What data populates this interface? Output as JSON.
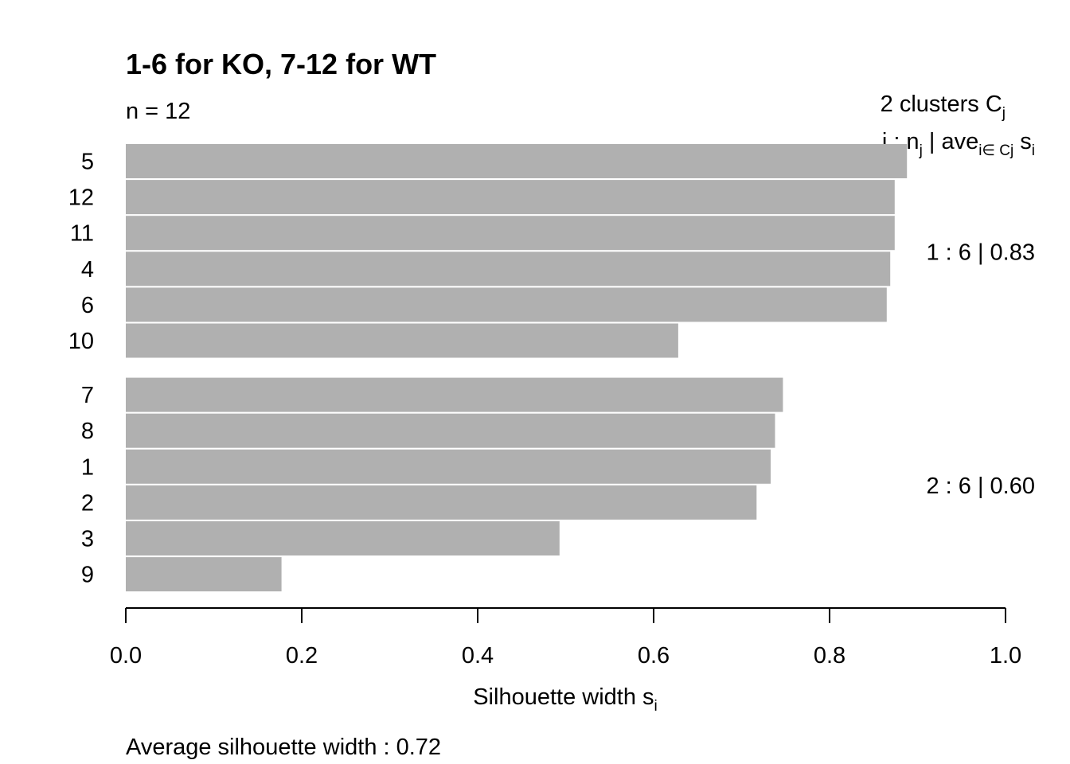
{
  "chart_data": {
    "type": "bar",
    "orientation": "horizontal",
    "title": "1-6 for KO, 7-12 for WT",
    "n_label": "n = 12",
    "legend_header": {
      "line1_main": "2 clusters C",
      "line1_sub": "j",
      "line2_a": "j :  n",
      "line2_a_sub": "j",
      "line2_b": " | ave",
      "line2_b_sub": "i∈ Cj",
      "line2_c": " s",
      "line2_c_sub": "i"
    },
    "xlabel_main": "Silhouette width s",
    "xlabel_sub": "i",
    "average_text": "Average silhouette width :  0.72",
    "xlim": [
      0.0,
      1.0
    ],
    "x_ticks": [
      "0.0",
      "0.2",
      "0.4",
      "0.6",
      "0.8",
      "1.0"
    ],
    "bar_color": "#b0b0b0",
    "clusters": [
      {
        "summary": "1 :   6  |  0.83",
        "bars": [
          {
            "label": "5",
            "value": 0.888
          },
          {
            "label": "12",
            "value": 0.874
          },
          {
            "label": "11",
            "value": 0.874
          },
          {
            "label": "4",
            "value": 0.869
          },
          {
            "label": "6",
            "value": 0.865
          },
          {
            "label": "10",
            "value": 0.628
          }
        ]
      },
      {
        "summary": "2 :   6  |  0.60",
        "bars": [
          {
            "label": "7",
            "value": 0.747
          },
          {
            "label": "8",
            "value": 0.738
          },
          {
            "label": "1",
            "value": 0.733
          },
          {
            "label": "2",
            "value": 0.717
          },
          {
            "label": "3",
            "value": 0.493
          },
          {
            "label": "9",
            "value": 0.177
          }
        ]
      }
    ]
  }
}
